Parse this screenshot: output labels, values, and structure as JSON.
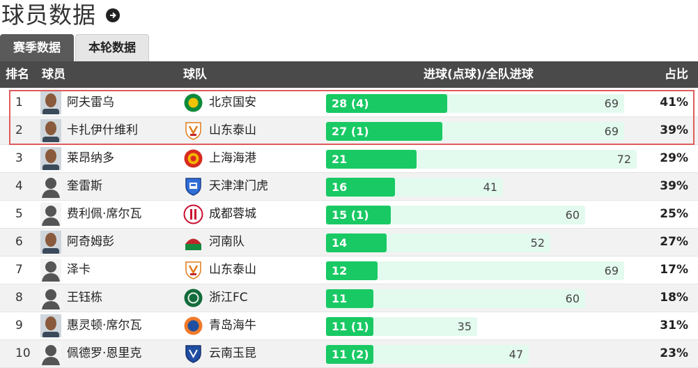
{
  "page_title": "球员数据",
  "tabs": [
    {
      "label": "赛季数据",
      "active": true
    },
    {
      "label": "本轮数据",
      "active": false
    }
  ],
  "columns": {
    "rank": "排名",
    "player": "球员",
    "team": "球队",
    "goals": "进球(点球)/全队进球",
    "ratio": "占比"
  },
  "colors": {
    "goals_bar": "#19c964",
    "team_total_bar": "#e3faef",
    "header_bg": "#4a4a4a",
    "highlight_border": "#e05a5a"
  },
  "rows": [
    {
      "rank": "1",
      "player": "阿夫雷乌",
      "avatar": "photo",
      "team": "北京国安",
      "team_logo": "beijing-guoan",
      "goals": 28,
      "goals_label": "28 (4)",
      "team_goals": 69,
      "team_goals_label": "69",
      "ratio": "41%"
    },
    {
      "rank": "2",
      "player": "卡扎伊什维利",
      "avatar": "photo",
      "team": "山东泰山",
      "team_logo": "shandong-taishan",
      "goals": 27,
      "goals_label": "27 (1)",
      "team_goals": 69,
      "team_goals_label": "69",
      "ratio": "39%"
    },
    {
      "rank": "3",
      "player": "莱昂纳多",
      "avatar": "photo",
      "team": "上海海港",
      "team_logo": "shanghai-port",
      "goals": 21,
      "goals_label": "21",
      "team_goals": 72,
      "team_goals_label": "72",
      "ratio": "29%"
    },
    {
      "rank": "4",
      "player": "奎雷斯",
      "avatar": "silhouette",
      "team": "天津津门虎",
      "team_logo": "tianjin-jinmen-tiger",
      "goals": 16,
      "goals_label": "16",
      "team_goals": 41,
      "team_goals_label": "41",
      "ratio": "39%"
    },
    {
      "rank": "5",
      "player": "费利佩·席尔瓦",
      "avatar": "silhouette",
      "team": "成都蓉城",
      "team_logo": "chengdu-rongcheng",
      "goals": 15,
      "goals_label": "15 (1)",
      "team_goals": 60,
      "team_goals_label": "60",
      "ratio": "25%"
    },
    {
      "rank": "6",
      "player": "阿奇姆彭",
      "avatar": "photo",
      "team": "河南队",
      "team_logo": "henan",
      "goals": 14,
      "goals_label": "14",
      "team_goals": 52,
      "team_goals_label": "52",
      "ratio": "27%"
    },
    {
      "rank": "7",
      "player": "泽卡",
      "avatar": "silhouette",
      "team": "山东泰山",
      "team_logo": "shandong-taishan",
      "goals": 12,
      "goals_label": "12",
      "team_goals": 69,
      "team_goals_label": "69",
      "ratio": "17%"
    },
    {
      "rank": "8",
      "player": "王钰栋",
      "avatar": "silhouette",
      "team": "浙江FC",
      "team_logo": "zhejiang",
      "goals": 11,
      "goals_label": "11",
      "team_goals": 60,
      "team_goals_label": "60",
      "ratio": "18%"
    },
    {
      "rank": "9",
      "player": "惠灵顿·席尔瓦",
      "avatar": "photo",
      "team": "青岛海牛",
      "team_logo": "qingdao-hainiu",
      "goals": 11,
      "goals_label": "11 (1)",
      "team_goals": 35,
      "team_goals_label": "35",
      "ratio": "31%"
    },
    {
      "rank": "10",
      "player": "佩德罗·恩里克",
      "avatar": "silhouette",
      "team": "云南玉昆",
      "team_logo": "yunnan-yukun",
      "goals": 11,
      "goals_label": "11 (2)",
      "team_goals": 47,
      "team_goals_label": "47",
      "ratio": "23%"
    }
  ]
}
